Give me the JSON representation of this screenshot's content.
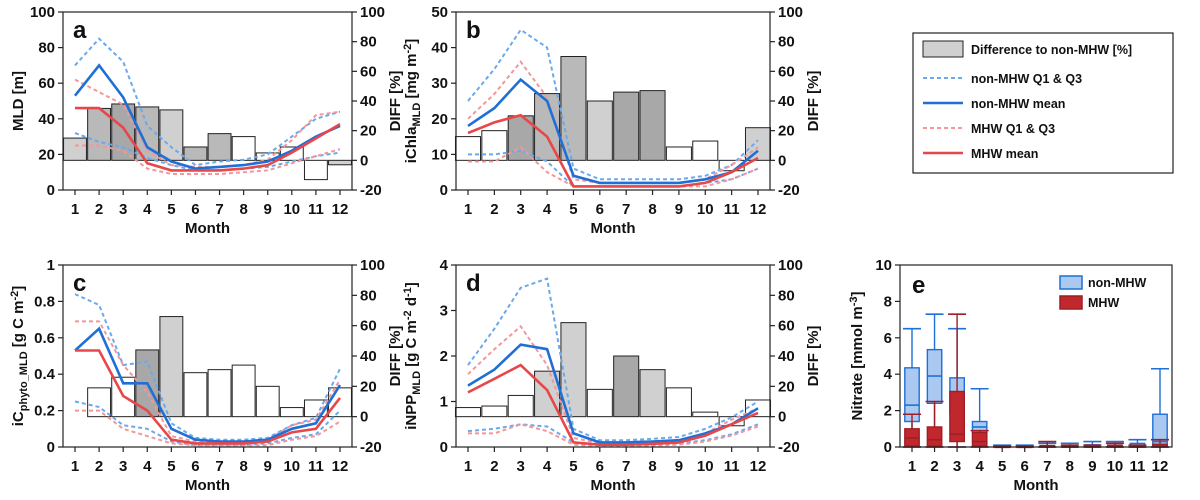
{
  "colors": {
    "blue": "#1f6fd6",
    "red": "#e8474a",
    "blue_light": "#6aa9ec",
    "red_light": "#f2979a",
    "box_blue_fill": "#a9c9f1",
    "box_red_fill": "#c0282e",
    "box_red_edge": "#9e1f25"
  },
  "legend": {
    "diff": "Difference to non-MHW [%]",
    "nonmhw_q": "non-MHW Q1 & Q3",
    "nonmhw_mean": "non-MHW mean",
    "mhw_q": "MHW Q1 & Q3",
    "mhw_mean": "MHW mean"
  },
  "chart_data": [
    {
      "panel": "a",
      "type": "bar+line",
      "x": [
        1,
        2,
        3,
        4,
        5,
        6,
        7,
        8,
        9,
        10,
        11,
        12
      ],
      "xlabel": "Month",
      "ylabel_main": "MLD",
      "ylabel_unit": " [m]",
      "ylabel_right": "DIFF [%]",
      "ylim": [
        0,
        100
      ],
      "yticks": [
        0,
        20,
        40,
        60,
        80,
        100
      ],
      "y2lim": [
        -20,
        100
      ],
      "y2ticks": [
        -20,
        0,
        20,
        40,
        60,
        80,
        100
      ],
      "diff": [
        15,
        35,
        38,
        36,
        34,
        9,
        18,
        16,
        5,
        9,
        -13,
        -3
      ],
      "diff_shade": [
        "#d0d0d0",
        "#b9b9b9",
        "#a8a8a8",
        "#b9b9b9",
        "#d0d0d0",
        "#b9b9b9",
        "#b9b9b9",
        "#ffffff",
        "#ffffff",
        "#ffffff",
        "#ffffff",
        "#d0d0d0"
      ],
      "non_mhw_mean": [
        53,
        70,
        52,
        24,
        16,
        12,
        13,
        14,
        16,
        22,
        30,
        36
      ],
      "mhw_mean": [
        46,
        46,
        35,
        15,
        11,
        11,
        11,
        12,
        14,
        21,
        29,
        37
      ],
      "non_mhw_q1": [
        32,
        27,
        24,
        18,
        14,
        11,
        11,
        12,
        13,
        16,
        19,
        21
      ],
      "non_mhw_q3": [
        70,
        85,
        72,
        36,
        24,
        14,
        16,
        17,
        20,
        30,
        40,
        44
      ],
      "mhw_q1": [
        25,
        25,
        22,
        12,
        9,
        9,
        9,
        10,
        11,
        15,
        19,
        23
      ],
      "mhw_q3": [
        62,
        55,
        48,
        22,
        14,
        13,
        13,
        14,
        17,
        28,
        42,
        44
      ]
    },
    {
      "panel": "b",
      "type": "bar+line",
      "x": [
        1,
        2,
        3,
        4,
        5,
        6,
        7,
        8,
        9,
        10,
        11,
        12
      ],
      "xlabel": "Month",
      "ylabel_main": "iChla",
      "ylabel_sub": "MLD",
      "ylabel_unit": " [mg m",
      "ylabel_sup": "-2",
      "ylabel_close": "]",
      "ylabel_right": "DIFF [%]",
      "ylim": [
        0,
        50
      ],
      "yticks": [
        0,
        10,
        20,
        30,
        40,
        50
      ],
      "y2lim": [
        -20,
        100
      ],
      "y2ticks": [
        -20,
        0,
        20,
        40,
        60,
        80,
        100
      ],
      "diff": [
        16,
        20,
        30,
        45,
        70,
        40,
        46,
        47,
        9,
        13,
        -7,
        22
      ],
      "diff_shade": [
        "#ffffff",
        "#ffffff",
        "#a8a8a8",
        "#b9b9b9",
        "#b9b9b9",
        "#d0d0d0",
        "#a8a8a8",
        "#a8a8a8",
        "#ffffff",
        "#ffffff",
        "#ffffff",
        "#d0d0d0"
      ],
      "non_mhw_mean": [
        18,
        23,
        31,
        25,
        4,
        2,
        2,
        2,
        2,
        3,
        5,
        11
      ],
      "mhw_mean": [
        16,
        19,
        21,
        15,
        1,
        1,
        1,
        1,
        1,
        2,
        5,
        9
      ],
      "non_mhw_q1": [
        10,
        10,
        11,
        8,
        1,
        1,
        1,
        1,
        1,
        2,
        3,
        6
      ],
      "non_mhw_q3": [
        25,
        34,
        45,
        40,
        6,
        3,
        3,
        3,
        3,
        4,
        7,
        14
      ],
      "mhw_q1": [
        8,
        8,
        12,
        5,
        1,
        1,
        1,
        1,
        1,
        1,
        3,
        6
      ],
      "mhw_q3": [
        20,
        27,
        36,
        26,
        3,
        2,
        2,
        2,
        2,
        3,
        7,
        12
      ]
    },
    {
      "panel": "c",
      "type": "bar+line",
      "x": [
        1,
        2,
        3,
        4,
        5,
        6,
        7,
        8,
        9,
        10,
        11,
        12
      ],
      "xlabel": "Month",
      "ylabel_main": "iC",
      "ylabel_sub": "phyto_MLD",
      "ylabel_unit": " [g C m",
      "ylabel_sup": "-2",
      "ylabel_close": "]",
      "ylabel_right": "DIFF [%]",
      "ylim": [
        0,
        1
      ],
      "yticks": [
        0,
        0.2,
        0.4,
        0.6,
        0.8,
        1
      ],
      "y2lim": [
        -20,
        100
      ],
      "y2ticks": [
        -20,
        0,
        20,
        40,
        60,
        80,
        100
      ],
      "diff": [
        0,
        19,
        26,
        44,
        66,
        29,
        31,
        34,
        20,
        6,
        11,
        19
      ],
      "diff_shade": [
        "#ffffff",
        "#ffffff",
        "#ffffff",
        "#a8a8a8",
        "#d0d0d0",
        "#ffffff",
        "#ffffff",
        "#ffffff",
        "#ffffff",
        "#ffffff",
        "#ffffff",
        "#ffffff"
      ],
      "non_mhw_mean": [
        0.53,
        0.65,
        0.35,
        0.35,
        0.1,
        0.04,
        0.03,
        0.03,
        0.04,
        0.1,
        0.13,
        0.34
      ],
      "mhw_mean": [
        0.53,
        0.53,
        0.28,
        0.2,
        0.04,
        0.02,
        0.02,
        0.02,
        0.03,
        0.08,
        0.1,
        0.27
      ],
      "non_mhw_q1": [
        0.25,
        0.22,
        0.12,
        0.1,
        0.03,
        0.01,
        0.01,
        0.01,
        0.02,
        0.05,
        0.07,
        0.2
      ],
      "non_mhw_q3": [
        0.84,
        0.78,
        0.45,
        0.47,
        0.13,
        0.05,
        0.04,
        0.04,
        0.05,
        0.12,
        0.16,
        0.43
      ],
      "mhw_q1": [
        0.2,
        0.2,
        0.1,
        0.06,
        0.02,
        0.01,
        0.01,
        0.01,
        0.01,
        0.04,
        0.06,
        0.14
      ],
      "mhw_q3": [
        0.69,
        0.69,
        0.45,
        0.3,
        0.06,
        0.03,
        0.03,
        0.03,
        0.04,
        0.12,
        0.15,
        0.37
      ]
    },
    {
      "panel": "d",
      "type": "bar+line",
      "x": [
        1,
        2,
        3,
        4,
        5,
        6,
        7,
        8,
        9,
        10,
        11,
        12
      ],
      "xlabel": "Month",
      "ylabel_main": "iNPP",
      "ylabel_sub": "MLD",
      "ylabel_unit": " [g C m",
      "ylabel_sup": "-2",
      "ylabel_close": " d",
      "ylabel_sup2": "-1",
      "ylabel_close2": "]",
      "ylabel_right": "DIFF [%]",
      "ylim": [
        0,
        4
      ],
      "yticks": [
        0,
        1,
        2,
        3,
        4
      ],
      "y2lim": [
        -20,
        100
      ],
      "y2ticks": [
        -20,
        0,
        20,
        40,
        60,
        80,
        100
      ],
      "diff": [
        6,
        7,
        14,
        30,
        62,
        18,
        40,
        31,
        19,
        3,
        -6,
        11
      ],
      "diff_shade": [
        "#ffffff",
        "#ffffff",
        "#ffffff",
        "#d0d0d0",
        "#d0d0d0",
        "#ffffff",
        "#a8a8a8",
        "#d0d0d0",
        "#ffffff",
        "#ffffff",
        "#ffffff",
        "#ffffff"
      ],
      "non_mhw_mean": [
        1.35,
        1.7,
        2.25,
        2.15,
        0.3,
        0.1,
        0.1,
        0.12,
        0.15,
        0.3,
        0.5,
        0.85
      ],
      "mhw_mean": [
        1.2,
        1.5,
        1.8,
        1.25,
        0.1,
        0.05,
        0.05,
        0.07,
        0.1,
        0.25,
        0.5,
        0.75
      ],
      "non_mhw_q1": [
        0.35,
        0.4,
        0.5,
        0.45,
        0.1,
        0.05,
        0.05,
        0.05,
        0.08,
        0.15,
        0.28,
        0.5
      ],
      "non_mhw_q3": [
        1.8,
        2.6,
        3.5,
        3.7,
        0.4,
        0.15,
        0.15,
        0.18,
        0.22,
        0.4,
        0.65,
        1.0
      ],
      "mhw_q1": [
        0.3,
        0.3,
        0.5,
        0.35,
        0.05,
        0.02,
        0.02,
        0.03,
        0.05,
        0.12,
        0.25,
        0.45
      ],
      "mhw_q3": [
        1.6,
        2.15,
        2.65,
        1.8,
        0.2,
        0.08,
        0.08,
        0.1,
        0.15,
        0.3,
        0.6,
        0.85
      ]
    },
    {
      "panel": "e",
      "type": "boxplot",
      "x": [
        1,
        2,
        3,
        4,
        5,
        6,
        7,
        8,
        9,
        10,
        11,
        12
      ],
      "xlabel": "Month",
      "ylabel_main": "Nitrate",
      "ylabel_unit": " [mmol m",
      "ylabel_sup": "-3",
      "ylabel_close": "]",
      "ylim": [
        0,
        10
      ],
      "yticks": [
        0,
        2,
        4,
        6,
        8,
        10
      ],
      "legend": [
        "non-MHW",
        "MHW"
      ],
      "non_mhw": [
        {
          "q1": 1.4,
          "median": 2.3,
          "q3": 4.35,
          "whislo": 0,
          "whishi": 6.5
        },
        {
          "q1": 2.4,
          "median": 3.9,
          "q3": 5.35,
          "whislo": 0,
          "whishi": 7.3
        },
        {
          "q1": 1.8,
          "median": 2.4,
          "q3": 3.8,
          "whislo": 0,
          "whishi": 6.5
        },
        {
          "q1": 0.8,
          "median": 1.1,
          "q3": 1.4,
          "whislo": 0,
          "whishi": 3.2
        },
        {
          "q1": 0.0,
          "median": 0.02,
          "q3": 0.05,
          "whislo": 0,
          "whishi": 0.1
        },
        {
          "q1": 0.0,
          "median": 0.02,
          "q3": 0.05,
          "whislo": 0,
          "whishi": 0.1
        },
        {
          "q1": 0.0,
          "median": 0.03,
          "q3": 0.06,
          "whislo": 0,
          "whishi": 0.2
        },
        {
          "q1": 0.0,
          "median": 0.04,
          "q3": 0.1,
          "whislo": 0,
          "whishi": 0.2
        },
        {
          "q1": 0.0,
          "median": 0.05,
          "q3": 0.12,
          "whislo": 0,
          "whishi": 0.3
        },
        {
          "q1": 0.0,
          "median": 0.05,
          "q3": 0.1,
          "whislo": 0,
          "whishi": 0.3
        },
        {
          "q1": 0.0,
          "median": 0.1,
          "q3": 0.2,
          "whislo": 0,
          "whishi": 0.4
        },
        {
          "q1": 0.1,
          "median": 0.3,
          "q3": 1.8,
          "whislo": 0,
          "whishi": 4.3
        }
      ],
      "mhw": [
        {
          "q1": 0.05,
          "median": 0.5,
          "q3": 1.0,
          "whislo": 0,
          "whishi": 1.8
        },
        {
          "q1": 0.05,
          "median": 0.4,
          "q3": 1.1,
          "whislo": 0,
          "whishi": 2.5
        },
        {
          "q1": 0.3,
          "median": 0.7,
          "q3": 3.05,
          "whislo": 0,
          "whishi": 7.3
        },
        {
          "q1": 0.05,
          "median": 0.3,
          "q3": 0.8,
          "whislo": 0,
          "whishi": 0.9
        },
        {
          "q1": 0.0,
          "median": 0.0,
          "q3": 0.02,
          "whislo": 0,
          "whishi": 0.05
        },
        {
          "q1": 0.0,
          "median": 0.0,
          "q3": 0.02,
          "whislo": 0,
          "whishi": 0.05
        },
        {
          "q1": 0.0,
          "median": 0.02,
          "q3": 0.08,
          "whislo": 0,
          "whishi": 0.3
        },
        {
          "q1": 0.0,
          "median": 0.02,
          "q3": 0.05,
          "whislo": 0,
          "whishi": 0.1
        },
        {
          "q1": 0.0,
          "median": 0.02,
          "q3": 0.05,
          "whislo": 0,
          "whishi": 0.1
        },
        {
          "q1": 0.0,
          "median": 0.05,
          "q3": 0.1,
          "whislo": 0,
          "whishi": 0.2
        },
        {
          "q1": 0.0,
          "median": 0.03,
          "q3": 0.06,
          "whislo": 0,
          "whishi": 0.1
        },
        {
          "q1": 0.0,
          "median": 0.05,
          "q3": 0.15,
          "whislo": 0,
          "whishi": 0.4
        }
      ]
    }
  ]
}
